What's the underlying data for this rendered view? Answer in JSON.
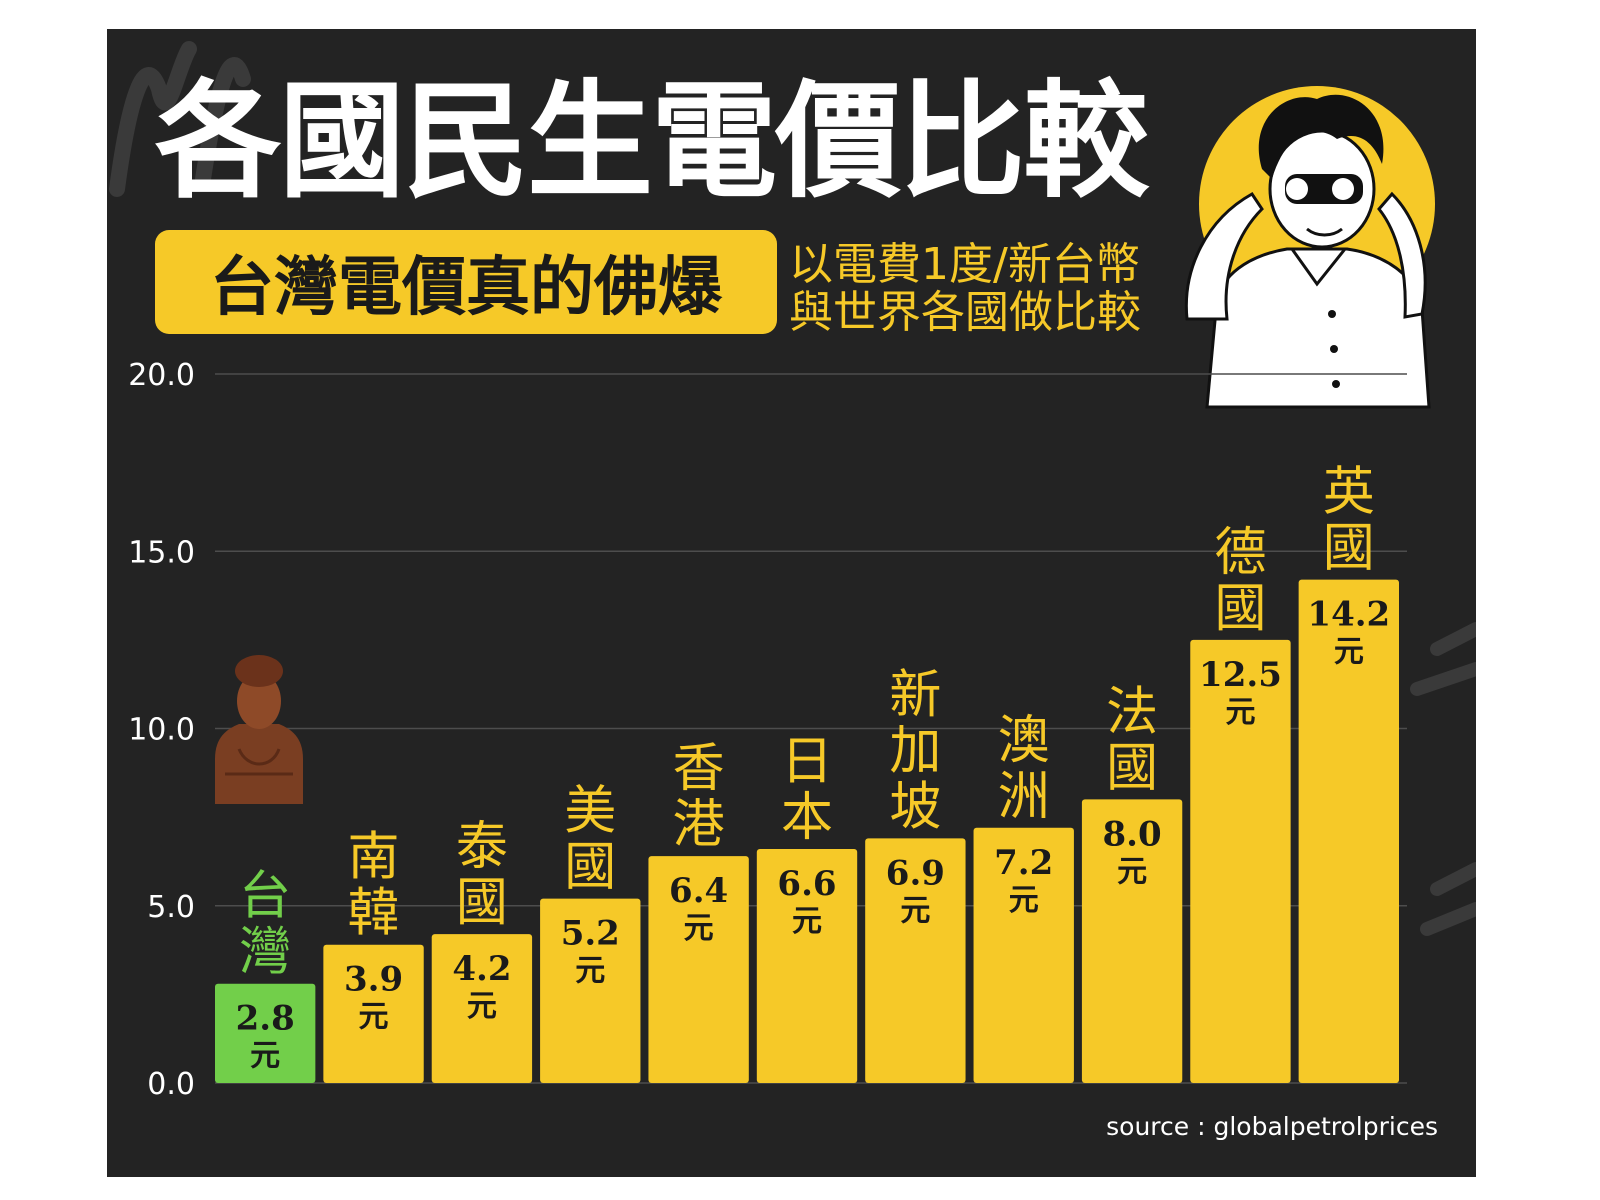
{
  "colors": {
    "background": "#232323",
    "bar": "#f6c928",
    "highlight_bar": "#72cf4a",
    "label": "#f6c928",
    "highlight_label": "#72cf4a",
    "value_text": "#1a1a1a"
  },
  "header": {
    "title": "各國民生電價比較",
    "badge": "台灣電價真的佛爆",
    "subtitle_line1": "以電費1度/新台幣",
    "subtitle_line2": "與世界各國做比較"
  },
  "source": "source : globalpetrolprices",
  "chart_data": {
    "type": "bar",
    "categories": [
      "台灣",
      "南韓",
      "泰國",
      "美國",
      "香港",
      "日本",
      "新加坡",
      "澳洲",
      "法國",
      "德國",
      "英國"
    ],
    "values": [
      2.8,
      3.9,
      4.2,
      5.2,
      6.4,
      6.6,
      6.9,
      7.2,
      8.0,
      12.5,
      14.2
    ],
    "value_labels": [
      "2.8",
      "3.9",
      "4.2",
      "5.2",
      "6.4",
      "6.6",
      "6.9",
      "7.2",
      "8.0",
      "12.5",
      "14.2"
    ],
    "unit": "元",
    "highlight_category": "台灣",
    "ylim": [
      0,
      20
    ],
    "yticks": [
      "0.0",
      "5.0",
      "10.0",
      "15.0",
      "20.0"
    ],
    "grid": true,
    "legend": "none",
    "title": "各國民生電價比較",
    "xlabel": "",
    "ylabel": ""
  }
}
